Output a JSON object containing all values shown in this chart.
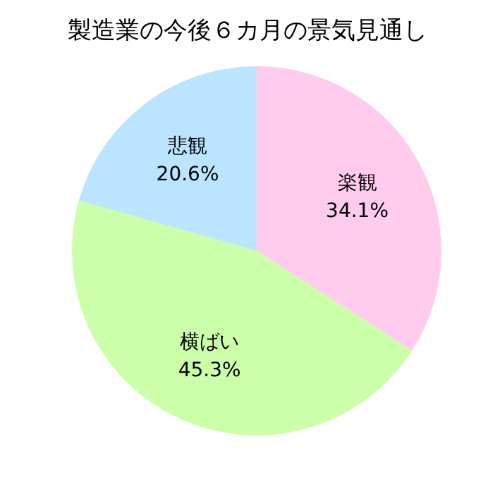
{
  "chart_data": {
    "type": "pie",
    "title": "製造業の今後６カ月の景気見通し",
    "categories": [
      "楽観",
      "横ばい",
      "悲観"
    ],
    "values": [
      34.1,
      45.3,
      20.6
    ],
    "colors": [
      "#ffccee",
      "#ccffaa",
      "#bbe4ff"
    ],
    "value_labels": [
      "34.1%",
      "45.3%",
      "20.6%"
    ]
  }
}
